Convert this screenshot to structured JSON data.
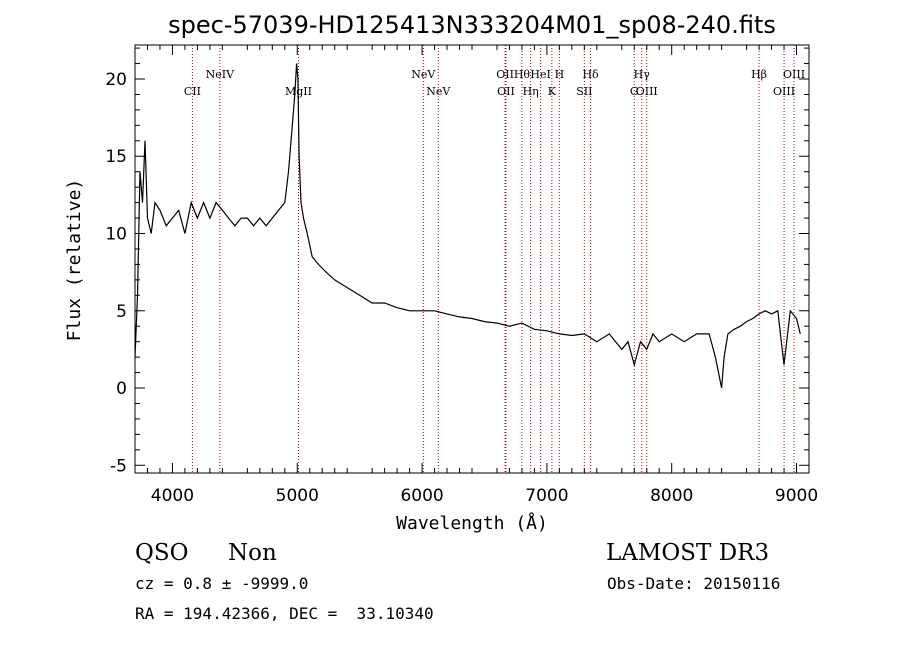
{
  "chart_data": {
    "type": "line",
    "title": "spec-57039-HD125413N333204M01_sp08-240.fits",
    "xlabel": "Wavelength (Å)",
    "ylabel": "Flux (relative)",
    "xlim": [
      3700,
      9100
    ],
    "ylim": [
      -5.5,
      22.2
    ],
    "xticks": [
      4000,
      5000,
      6000,
      7000,
      8000,
      9000
    ],
    "yticks": [
      -5,
      0,
      5,
      10,
      15,
      20
    ],
    "grid": false,
    "line_color": "#000000",
    "marker_color": "#b00000",
    "series": [
      {
        "x": [
          3700,
          3720,
          3740,
          3760,
          3780,
          3800,
          3830,
          3860,
          3900,
          3950,
          4000,
          4050,
          4100,
          4150,
          4200,
          4250,
          4300,
          4350,
          4400,
          4450,
          4500,
          4550,
          4600,
          4650,
          4700,
          4750,
          4800,
          4850,
          4900,
          4930,
          4960,
          4980,
          4995,
          5005,
          5015,
          5030,
          5050,
          5080,
          5120,
          5170,
          5230,
          5300,
          5400,
          5500,
          5600,
          5700,
          5800,
          5900,
          6000,
          6100,
          6200,
          6300,
          6400,
          6500,
          6600,
          6700,
          6800,
          6900,
          7000,
          7100,
          7200,
          7300,
          7400,
          7500,
          7600,
          7650,
          7700,
          7750,
          7800,
          7850,
          7900,
          8000,
          8100,
          8200,
          8300,
          8350,
          8400,
          8420,
          8450,
          8500,
          8550,
          8600,
          8650,
          8700,
          8750,
          8800,
          8850,
          8900,
          8950,
          9000,
          9030
        ],
        "y": [
          2,
          6,
          14,
          12,
          16,
          11,
          10,
          12,
          11.5,
          10.5,
          11,
          11.5,
          10,
          12,
          11,
          12,
          11,
          12,
          11.5,
          11,
          10.5,
          11,
          11,
          10.5,
          11,
          10.5,
          11,
          11.5,
          12,
          14,
          17,
          19,
          21,
          20,
          15,
          12,
          11,
          10,
          8.5,
          8,
          7.5,
          7,
          6.5,
          6,
          5.5,
          5.5,
          5.2,
          5,
          5,
          5,
          4.8,
          4.6,
          4.5,
          4.3,
          4.2,
          4,
          4.2,
          3.8,
          3.7,
          3.5,
          3.4,
          3.5,
          3,
          3.5,
          2.5,
          3,
          1.5,
          3,
          2.5,
          3.5,
          3,
          3.5,
          3,
          3.5,
          3.5,
          2,
          0,
          2,
          3.5,
          3.8,
          4,
          4.3,
          4.5,
          4.8,
          5,
          4.8,
          5,
          1.5,
          5,
          4.5,
          3.5
        ]
      }
    ],
    "lines": [
      {
        "name": "CII",
        "wave": 4160
      },
      {
        "name": "NeIV",
        "wave": 4380
      },
      {
        "name": "MgII",
        "wave": 5010
      },
      {
        "name": "NeV",
        "wave": 6010
      },
      {
        "name": "NeV",
        "wave": 6130
      },
      {
        "name": "OII",
        "wave": 6665
      },
      {
        "name": "OII",
        "wave": 6672
      },
      {
        "name": "Hθ",
        "wave": 6800
      },
      {
        "name": "Hη",
        "wave": 6870
      },
      {
        "name": "HeI",
        "wave": 6950
      },
      {
        "name": "K",
        "wave": 7040
      },
      {
        "name": "H",
        "wave": 7100
      },
      {
        "name": "SII",
        "wave": 7300
      },
      {
        "name": "Hδ",
        "wave": 7350
      },
      {
        "name": "G",
        "wave": 7700
      },
      {
        "name": "Hγ",
        "wave": 7760
      },
      {
        "name": "OIII",
        "wave": 7800
      },
      {
        "name": "Hβ",
        "wave": 8700
      },
      {
        "name": "OIII",
        "wave": 8900
      },
      {
        "name": "OIII",
        "wave": 8980
      }
    ]
  },
  "info": {
    "class": "QSO",
    "subclass": "Non",
    "survey": "LAMOST DR3",
    "cz": "cz = 0.8 ± -9999.0",
    "obs_date": "Obs-Date: 20150116",
    "coords": "RA = 194.42366, DEC =  33.10340"
  }
}
